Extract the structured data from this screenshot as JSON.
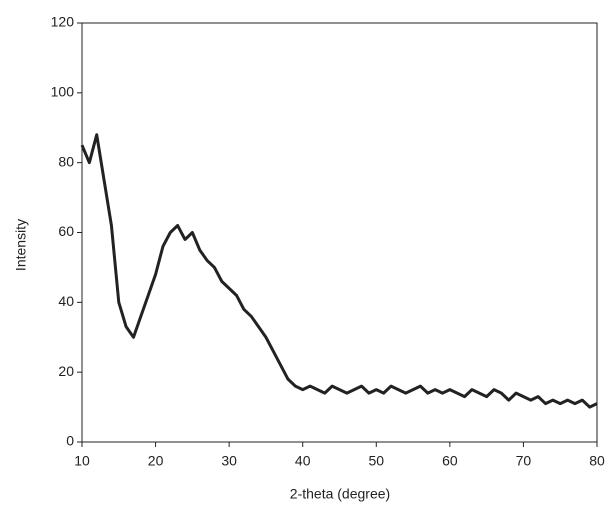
{
  "chart_data": {
    "type": "line",
    "x_label": "2-theta (degree)",
    "y_label": "Intensity",
    "x": [
      10,
      11,
      12,
      13,
      14,
      15,
      16,
      17,
      18,
      19,
      20,
      21,
      22,
      23,
      24,
      25,
      26,
      27,
      28,
      29,
      30,
      31,
      32,
      33,
      34,
      35,
      36,
      37,
      38,
      39,
      40,
      41,
      42,
      43,
      44,
      45,
      46,
      47,
      48,
      49,
      50,
      51,
      52,
      53,
      54,
      55,
      56,
      57,
      58,
      59,
      60,
      61,
      62,
      63,
      64,
      65,
      66,
      67,
      68,
      69,
      70,
      71,
      72,
      73,
      74,
      75,
      76,
      77,
      78,
      79,
      80
    ],
    "series": [
      {
        "color": "#222222",
        "values": [
          85,
          80,
          88,
          75,
          62,
          40,
          33,
          30,
          36,
          42,
          48,
          56,
          60,
          62,
          58,
          60,
          55,
          52,
          50,
          46,
          44,
          42,
          38,
          36,
          33,
          30,
          26,
          22,
          18,
          16,
          15,
          16,
          15,
          14,
          16,
          15,
          14,
          15,
          16,
          14,
          15,
          14,
          16,
          15,
          14,
          15,
          16,
          14,
          15,
          14,
          15,
          14,
          13,
          15,
          14,
          13,
          15,
          14,
          12,
          14,
          13,
          12,
          13,
          11,
          12,
          11,
          12,
          11,
          12,
          10,
          11
        ]
      }
    ],
    "xlim": [
      10,
      80
    ],
    "xticks": [
      10,
      20,
      30,
      40,
      50,
      60,
      70,
      80
    ],
    "ylim": [
      0,
      120
    ],
    "yticks": [
      0,
      20,
      40,
      60,
      80,
      100,
      120
    ],
    "grid": false
  }
}
